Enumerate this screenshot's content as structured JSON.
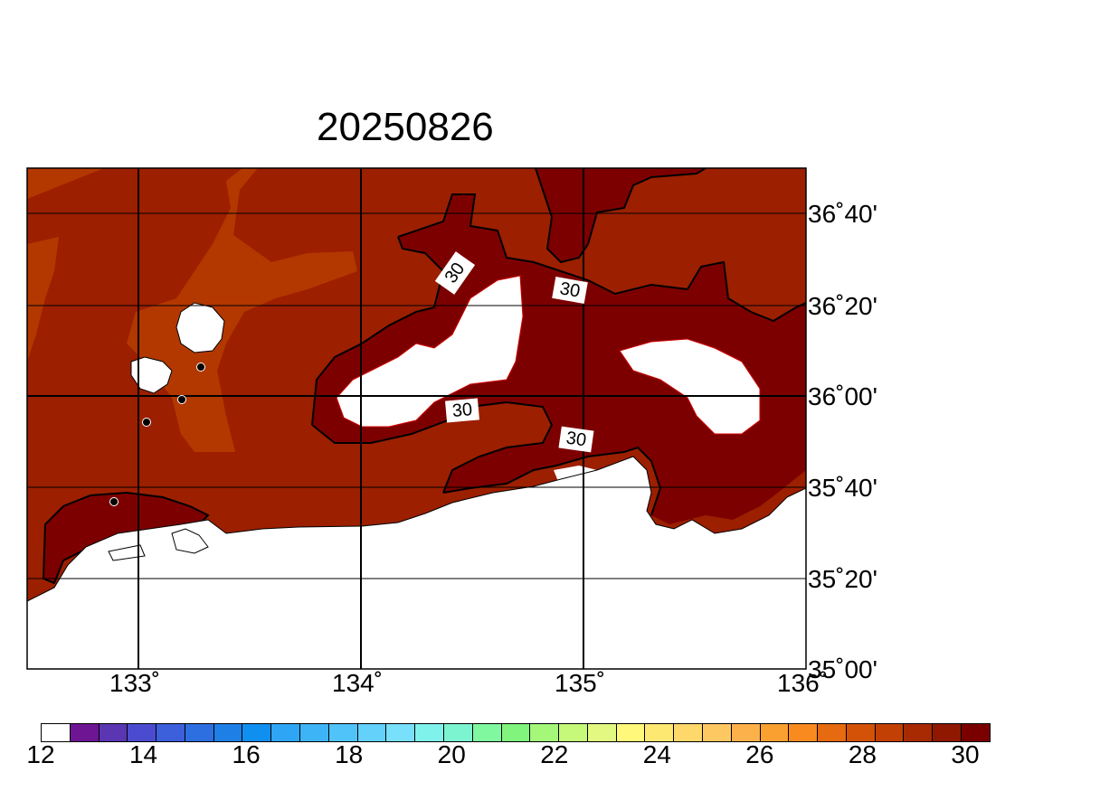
{
  "title": "20250826",
  "map": {
    "lat_labels": [
      "36˚40'",
      "36˚20'",
      "36˚00'",
      "35˚40'",
      "35˚20'",
      "35˚00'"
    ],
    "lon_labels": [
      "133˚",
      "134˚",
      "135˚",
      "136˚"
    ],
    "contour_labels": [
      "30",
      "30",
      "30",
      "30"
    ],
    "colors": {
      "field_28_29": "#9c1f00",
      "field_29_30": "#b33800",
      "field_30plus": "#7d0000",
      "land": "#ffffff",
      "grid": "#000000"
    }
  },
  "colorbar": {
    "labels": [
      "12",
      "14",
      "16",
      "18",
      "20",
      "22",
      "24",
      "26",
      "28",
      "30"
    ],
    "colors": [
      "#ffffff",
      "#6e1594",
      "#5a36b3",
      "#4b4bd0",
      "#3c5fdc",
      "#2d6fe0",
      "#1e7fe6",
      "#0f8ff0",
      "#2ea6f5",
      "#3db4f5",
      "#50c3f8",
      "#63d1fa",
      "#78e0fb",
      "#7ff2ec",
      "#7cf4d0",
      "#7ff8a0",
      "#80f47c",
      "#a5f77a",
      "#c6f87a",
      "#e3f880",
      "#fff87a",
      "#fde872",
      "#fed86a",
      "#fdc862",
      "#fcb14a",
      "#faa030",
      "#f88a20",
      "#e66a10",
      "#d45208",
      "#c24004",
      "#a82a02",
      "#901800",
      "#7a0000"
    ]
  }
}
